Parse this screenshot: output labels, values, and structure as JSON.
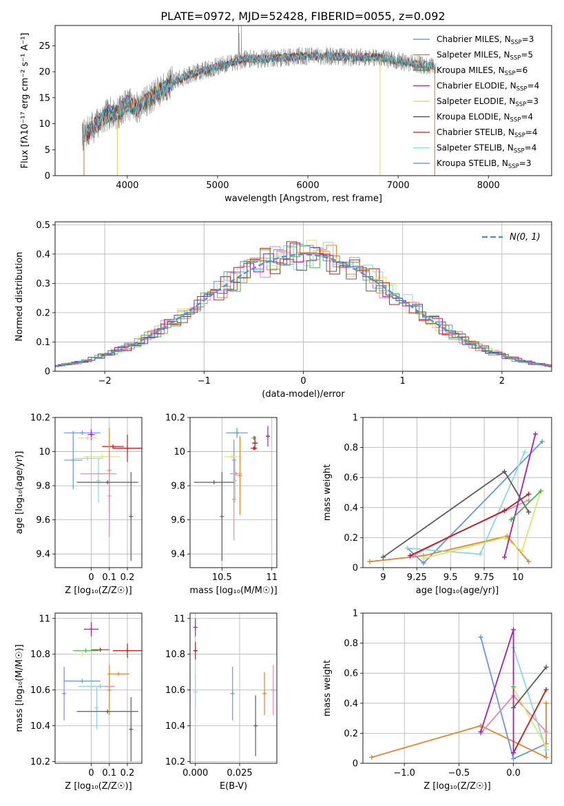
{
  "title": "PLATE=0972, MJD=52428, FIBERID=0055, z=0.092",
  "colors": {
    "palette": [
      "#6495ed",
      "#e7852b",
      "#ec84b4",
      "#8ad8e0",
      "#dde56a",
      "#c01818",
      "#a51fb0",
      "#5a5a5a",
      "#52b04f"
    ],
    "spectrum_models": [
      "#4a90b8",
      "#cc7a22",
      "#3a8a3a",
      "#8a2aa0",
      "#e0d060",
      "#444444",
      "#c02020",
      "#80e0e8"
    ],
    "gaussian": "#5b8ed8",
    "grid": "#b0b0b0"
  },
  "chart_data": [
    {
      "id": "spectrum",
      "type": "line",
      "xlabel": "wavelength [Angstrom, rest frame]",
      "ylabel": "Flux [fλ10⁻¹⁷ erg cm⁻² s⁻¹ A⁻¹]",
      "xlim": [
        3200,
        8700
      ],
      "ylim": [
        0,
        28.9
      ],
      "xticks": [
        4000,
        5000,
        6000,
        7000,
        8000
      ],
      "yticks": [
        0,
        5,
        10,
        15,
        20,
        25
      ],
      "grid": false,
      "legend_position": "top-right",
      "continuum_x": [
        3500,
        3600,
        3700,
        3800,
        3900,
        4000,
        4100,
        4300,
        4500,
        4700,
        5000,
        5300,
        5600,
        5900,
        6200,
        6500,
        6800,
        7000,
        7200,
        7400
      ],
      "continuum_y": [
        7.5,
        9.0,
        10.5,
        12.0,
        12.0,
        14.0,
        13.0,
        15.5,
        18.0,
        19.5,
        21.0,
        22.5,
        22.5,
        23.0,
        23.0,
        22.8,
        22.8,
        22.0,
        21.5,
        21.0
      ],
      "series": [
        {
          "name": "Chabrier MILES, N",
          "sub": "SSP",
          "suffix": "=3",
          "xmax": 7400
        },
        {
          "name": "Salpeter MILES, N",
          "sub": "SSP",
          "suffix": "=5",
          "xmax": 7400
        },
        {
          "name": "Kroupa MILES, N",
          "sub": "SSP",
          "suffix": "=6",
          "xmax": 7400
        },
        {
          "name": "Chabrier ELODIE, N",
          "sub": "SSP",
          "suffix": "=4",
          "xmax": 6800
        },
        {
          "name": "Salpeter ELODIE, N",
          "sub": "SSP",
          "suffix": "=3",
          "xmax": 6800
        },
        {
          "name": "Kroupa ELODIE, N",
          "sub": "SSP",
          "suffix": "=4",
          "xmax": 6800
        },
        {
          "name": "Chabrier STELIB, N",
          "sub": "SSP",
          "suffix": "=4",
          "xmax": 8000
        },
        {
          "name": "Salpeter STELIB, N",
          "sub": "SSP",
          "suffix": "=4",
          "xmax": 8000
        },
        {
          "name": "Kroupa STELIB, N",
          "sub": "SSP",
          "suffix": "=3",
          "xmax": 8000
        }
      ]
    },
    {
      "id": "residuals",
      "type": "histogram",
      "xlabel": "(data-model)/error",
      "ylabel": "Normed distribution",
      "xlim": [
        -2.5,
        2.5
      ],
      "ylim": [
        0,
        0.51
      ],
      "xticks": [
        -2,
        -1,
        0,
        1,
        2
      ],
      "yticks": [
        0.0,
        0.1,
        0.2,
        0.3,
        0.4,
        0.5
      ],
      "grid": true,
      "legend_position": "top-right",
      "legend_label": "N(0, 1)",
      "bin_width": 0.1,
      "n_histograms": 9
    },
    {
      "id": "age-vs-Z",
      "type": "scatter",
      "xlabel": "Z [log₁₀(Z/Z☉)]",
      "ylabel": "age  [log₁₀(age/yr)]",
      "xlim": [
        -0.2,
        0.28
      ],
      "ylim": [
        9.32,
        10.2
      ],
      "xticks": [
        0.0,
        0.1,
        0.2
      ],
      "yticks": [
        9.4,
        9.6,
        9.8,
        10.0,
        10.2
      ],
      "grid": true,
      "points": [
        {
          "x": -0.1,
          "y": 9.95,
          "xerr": 0.05,
          "yerr": 0.17,
          "color": 0
        },
        {
          "x": -0.05,
          "y": 10.11,
          "xerr": 0.1,
          "yerr": 0.0,
          "color": 0
        },
        {
          "x": 0.0,
          "y": 10.1,
          "xerr": 0.02,
          "yerr": 0.03,
          "color": 6
        },
        {
          "x": -0.02,
          "y": 10.08,
          "xerr": 0.05,
          "yerr": 0.0,
          "color": 4
        },
        {
          "x": 0.12,
          "y": 10.03,
          "xerr": 0.06,
          "yerr": 0.0,
          "color": 5
        },
        {
          "x": 0.2,
          "y": 10.02,
          "xerr": 0.08,
          "yerr": 0.08,
          "color": 5
        },
        {
          "x": 0.06,
          "y": 9.97,
          "xerr": 0.1,
          "yerr": 0.0,
          "color": 4
        },
        {
          "x": 0.1,
          "y": 9.89,
          "xerr": 0.0,
          "yerr": 0.25,
          "color": 1
        },
        {
          "x": 0.1,
          "y": 9.74,
          "xerr": 0.0,
          "yerr": 0.24,
          "color": 2
        },
        {
          "x": 0.04,
          "y": 9.87,
          "xerr": 0.1,
          "yerr": 0.0,
          "color": 2
        },
        {
          "x": 0.04,
          "y": 9.83,
          "xerr": 0.0,
          "yerr": 0.13,
          "color": 3
        },
        {
          "x": -0.02,
          "y": 9.96,
          "xerr": 0.08,
          "yerr": 0.0,
          "color": 3
        },
        {
          "x": 0.22,
          "y": 9.62,
          "xerr": 0.0,
          "yerr": 0.26,
          "color": 7
        },
        {
          "x": 0.09,
          "y": 9.82,
          "xerr": 0.17,
          "yerr": 0.0,
          "color": 7
        }
      ]
    },
    {
      "id": "age-vs-mass",
      "type": "scatter",
      "xlabel": "mass [log₁₀(M/M☉)]",
      "ylabel": "",
      "xlim": [
        10.18,
        11.05
      ],
      "ylim": [
        9.32,
        10.2
      ],
      "xticks": [
        10.5,
        11.0
      ],
      "yticks": [
        9.4,
        9.6,
        9.8,
        10.0,
        10.2
      ],
      "grid": true,
      "points": [
        {
          "x": 10.65,
          "y": 10.11,
          "xerr": 0.11,
          "yerr": 0.03,
          "color": 0
        },
        {
          "x": 10.62,
          "y": 9.95,
          "xerr": 0.0,
          "yerr": 0.12,
          "color": 0
        },
        {
          "x": 10.96,
          "y": 10.09,
          "xerr": 0.02,
          "yerr": 0.06,
          "color": 6
        },
        {
          "x": 10.82,
          "y": 10.08,
          "xerr": 0.02,
          "yerr": 0.0,
          "color": 8
        },
        {
          "x": 10.83,
          "y": 10.05,
          "xerr": 0.03,
          "yerr": 0.04,
          "color": 5
        },
        {
          "x": 10.82,
          "y": 10.02,
          "xerr": 0.03,
          "yerr": 0.0,
          "color": 5
        },
        {
          "x": 10.6,
          "y": 9.97,
          "xerr": 0.08,
          "yerr": 0.0,
          "color": 4
        },
        {
          "x": 10.68,
          "y": 9.86,
          "xerr": 0.0,
          "yerr": 0.23,
          "color": 1
        },
        {
          "x": 10.62,
          "y": 9.72,
          "xerr": 0.0,
          "yerr": 0.24,
          "color": 2
        },
        {
          "x": 10.64,
          "y": 9.87,
          "xerr": 0.06,
          "yerr": 0.0,
          "color": 2
        },
        {
          "x": 10.63,
          "y": 9.83,
          "xerr": 0.0,
          "yerr": 0.13,
          "color": 3
        },
        {
          "x": 10.5,
          "y": 9.62,
          "xerr": 0.0,
          "yerr": 0.26,
          "color": 7
        },
        {
          "x": 10.42,
          "y": 9.82,
          "xerr": 0.2,
          "yerr": 0.0,
          "color": 7
        }
      ]
    },
    {
      "id": "weight-vs-age",
      "type": "line",
      "xlabel": "age  [log₁₀(age/yr)]",
      "ylabel": "mass weight",
      "xlim": [
        8.85,
        10.25
      ],
      "ylim": [
        0,
        1
      ],
      "xticks": [
        9.0,
        9.25,
        9.5,
        9.75,
        10.0
      ],
      "yticks": [
        0.0,
        0.2,
        0.4,
        0.6,
        0.8,
        1.0
      ],
      "grid": true,
      "series": [
        {
          "color": 0,
          "x": [
            9.18,
            9.3,
            10.18
          ],
          "y": [
            0.13,
            0.03,
            0.84
          ]
        },
        {
          "color": 1,
          "x": [
            8.9,
            9.3,
            9.92,
            10.08
          ],
          "y": [
            0.04,
            0.08,
            0.21,
            0.04
          ]
        },
        {
          "color": 2,
          "x": [
            9.2,
            9.5,
            10.08
          ],
          "y": [
            0.07,
            0.21,
            0.45
          ]
        },
        {
          "color": 3,
          "x": [
            9.18,
            9.72,
            10.05
          ],
          "y": [
            0.13,
            0.09,
            0.77
          ]
        },
        {
          "color": 4,
          "x": [
            9.3,
            9.9,
            10.03,
            10.17
          ],
          "y": [
            0.06,
            0.2,
            0.11,
            0.51
          ]
        },
        {
          "color": 5,
          "x": [
            9.2,
            9.9,
            10.08
          ],
          "y": [
            0.08,
            0.38,
            0.49
          ]
        },
        {
          "color": 6,
          "x": [
            9.9,
            10.13
          ],
          "y": [
            0.07,
            0.89
          ]
        },
        {
          "color": 7,
          "x": [
            9.0,
            9.9,
            10.08
          ],
          "y": [
            0.07,
            0.64,
            0.37
          ]
        },
        {
          "color": 8,
          "x": [
            9.95,
            10.17
          ],
          "y": [
            0.32,
            0.51
          ]
        }
      ]
    },
    {
      "id": "mass-vs-Z",
      "type": "scatter",
      "xlabel": "Z [log₁₀(Z/Z☉)]",
      "ylabel": "mass [log₁₀(M/M☉)]",
      "xlim": [
        -0.2,
        0.28
      ],
      "ylim": [
        10.19,
        11.03
      ],
      "xticks": [
        0.0,
        0.1,
        0.2
      ],
      "yticks": [
        10.2,
        10.4,
        10.6,
        10.8,
        11.0
      ],
      "grid": true,
      "points": [
        {
          "x": -0.15,
          "y": 10.58,
          "xerr": 0.0,
          "yerr": 0.15,
          "color": 0
        },
        {
          "x": -0.05,
          "y": 10.65,
          "xerr": 0.1,
          "yerr": 0.0,
          "color": 0
        },
        {
          "x": 0.0,
          "y": 10.94,
          "xerr": 0.04,
          "yerr": 0.04,
          "color": 6
        },
        {
          "x": -0.03,
          "y": 10.82,
          "xerr": 0.07,
          "yerr": 0.0,
          "color": 8
        },
        {
          "x": -0.05,
          "y": 10.8,
          "xerr": 0.05,
          "yerr": 0.0,
          "color": 4
        },
        {
          "x": 0.2,
          "y": 10.82,
          "xerr": 0.08,
          "yerr": 0.04,
          "color": 5
        },
        {
          "x": 0.05,
          "y": 10.825,
          "xerr": 0.05,
          "yerr": 0.0,
          "color": 5
        },
        {
          "x": 0.1,
          "y": 10.6,
          "xerr": 0.0,
          "yerr": 0.14,
          "color": 1
        },
        {
          "x": 0.15,
          "y": 10.69,
          "xerr": 0.06,
          "yerr": 0.0,
          "color": 1
        },
        {
          "x": 0.05,
          "y": 10.62,
          "xerr": 0.08,
          "yerr": 0.0,
          "color": 2
        },
        {
          "x": 0.0,
          "y": 10.62,
          "xerr": 0.07,
          "yerr": 0.0,
          "color": 3
        },
        {
          "x": 0.03,
          "y": 10.5,
          "xerr": 0.0,
          "yerr": 0.12,
          "color": 3
        },
        {
          "x": 0.22,
          "y": 10.38,
          "xerr": 0.0,
          "yerr": 0.18,
          "color": 7
        },
        {
          "x": 0.09,
          "y": 10.48,
          "xerr": 0.17,
          "yerr": 0.0,
          "color": 7
        }
      ]
    },
    {
      "id": "mass-vs-ebv",
      "type": "scatter",
      "xlabel": "E(B-V)",
      "ylabel": "",
      "xlim": [
        -0.003,
        0.046
      ],
      "ylim": [
        10.19,
        11.03
      ],
      "xticks": [
        0.0,
        0.025
      ],
      "xticklabels": [
        "0.000",
        "0.025"
      ],
      "yticks": [
        10.2,
        10.4,
        10.6,
        10.8,
        11.0
      ],
      "grid": true,
      "points": [
        {
          "x": 0.0,
          "y": 10.95,
          "xerr": 0.0,
          "yerr": 0.05,
          "color": 6
        },
        {
          "x": 0.0,
          "y": 10.82,
          "xerr": 0.0,
          "yerr": 0.05,
          "color": 5
        },
        {
          "x": 0.0,
          "y": 10.59,
          "xerr": 0.0,
          "yerr": 0.1,
          "color": 3
        },
        {
          "x": 0.021,
          "y": 10.58,
          "xerr": 0.0,
          "yerr": 0.15,
          "color": 0
        },
        {
          "x": 0.034,
          "y": 10.4,
          "xerr": 0.0,
          "yerr": 0.17,
          "color": 7
        },
        {
          "x": 0.039,
          "y": 10.58,
          "xerr": 0.0,
          "yerr": 0.12,
          "color": 1
        },
        {
          "x": 0.044,
          "y": 10.6,
          "xerr": 0.0,
          "yerr": 0.14,
          "color": 2
        }
      ]
    },
    {
      "id": "weight-vs-Z",
      "type": "line",
      "xlabel": "Z [log₁₀(Z/Z☉)]",
      "ylabel": "mass weight",
      "xlim": [
        -1.38,
        0.35
      ],
      "ylim": [
        0,
        1
      ],
      "xticks": [
        -1.0,
        -0.5,
        0.0
      ],
      "xticklabels": [
        "−1.0",
        "−0.5",
        "0.0"
      ],
      "yticks": [
        0.0,
        0.2,
        0.4,
        0.6,
        0.8,
        1.0
      ],
      "grid": true,
      "series": [
        {
          "color": 0,
          "x": [
            -0.3,
            0.0,
            0.3
          ],
          "y": [
            0.84,
            0.03,
            0.13
          ]
        },
        {
          "color": 1,
          "x": [
            -1.3,
            -0.3,
            0.3,
            0.3
          ],
          "y": [
            0.04,
            0.25,
            0.04,
            0.4
          ]
        },
        {
          "color": 2,
          "x": [
            -0.3,
            0.0,
            0.3
          ],
          "y": [
            0.2,
            0.45,
            0.21
          ]
        },
        {
          "color": 3,
          "x": [
            0.0,
            0.3
          ],
          "y": [
            0.77,
            0.09
          ]
        },
        {
          "color": 4,
          "x": [
            0.0,
            0.3
          ],
          "y": [
            0.5,
            0.11
          ]
        },
        {
          "color": 5,
          "x": [
            0.0,
            0.3
          ],
          "y": [
            0.07,
            0.49
          ]
        },
        {
          "color": 6,
          "x": [
            -0.3,
            0.0,
            0.0
          ],
          "y": [
            0.21,
            0.89,
            0.07
          ]
        },
        {
          "color": 7,
          "x": [
            0.0,
            0.3
          ],
          "y": [
            0.37,
            0.64
          ]
        },
        {
          "color": 8,
          "x": [
            0.0
          ],
          "y": [
            0.51
          ]
        }
      ]
    }
  ]
}
